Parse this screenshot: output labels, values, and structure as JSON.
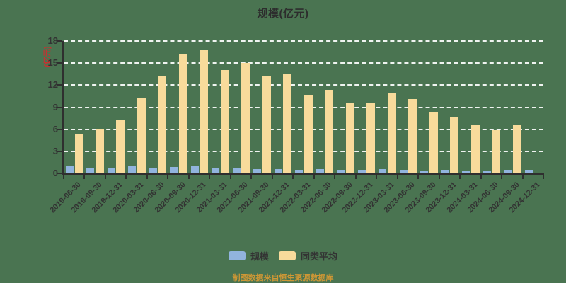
{
  "title": "规模(亿元)",
  "y_axis": {
    "unit_label": "(亿元)",
    "unit_color": "#C43231",
    "ticks": [
      0,
      3,
      6,
      9,
      12,
      15,
      18
    ]
  },
  "legend": {
    "items": [
      {
        "label": "规模",
        "color": "#91B4DE"
      },
      {
        "label": "同类平均",
        "color": "#F8DB9B"
      }
    ]
  },
  "footer": {
    "note": "制图数据来自恒生聚源数据库",
    "color": "#CE9735"
  },
  "colors": {
    "background": "#4A7451",
    "gridline": "#FFFFFF",
    "axis": "#2F2F2F",
    "text": "#333333",
    "title_text": "#2D2D2D"
  },
  "chart_data": {
    "type": "bar",
    "title": "规模(亿元)",
    "xlabel": "",
    "ylabel": "(亿元)",
    "ylim": [
      0,
      18
    ],
    "grid": "dashed",
    "legend_position": "bottom",
    "categories": [
      "2019-06-30",
      "2019-09-30",
      "2019-12-31",
      "2020-03-31",
      "2020-06-30",
      "2020-09-30",
      "2020-12-31",
      "2021-03-31",
      "2021-06-30",
      "2021-09-30",
      "2021-12-31",
      "2022-03-31",
      "2022-06-30",
      "2022-09-30",
      "2022-12-31",
      "2023-03-31",
      "2023-06-30",
      "2023-09-30",
      "2023-12-31",
      "2024-03-31",
      "2024-06-30",
      "2024-09-30",
      "2024-12-31"
    ],
    "series": [
      {
        "name": "规模",
        "color": "#91B4DE",
        "values": [
          1.1,
          0.7,
          0.7,
          1.0,
          0.8,
          0.9,
          1.1,
          0.8,
          0.7,
          0.6,
          0.55,
          0.45,
          0.55,
          0.45,
          0.5,
          0.6,
          0.5,
          0.4,
          0.45,
          0.4,
          0.4,
          0.45,
          0.45
        ]
      },
      {
        "name": "同类平均",
        "color": "#F8DB9B",
        "values": [
          5.3,
          6.0,
          7.3,
          10.2,
          13.2,
          16.3,
          16.8,
          14.1,
          15.0,
          13.3,
          13.6,
          10.7,
          11.4,
          9.5,
          9.6,
          10.9,
          10.1,
          8.3,
          7.6,
          6.5,
          5.9,
          6.5,
          null
        ]
      }
    ]
  }
}
